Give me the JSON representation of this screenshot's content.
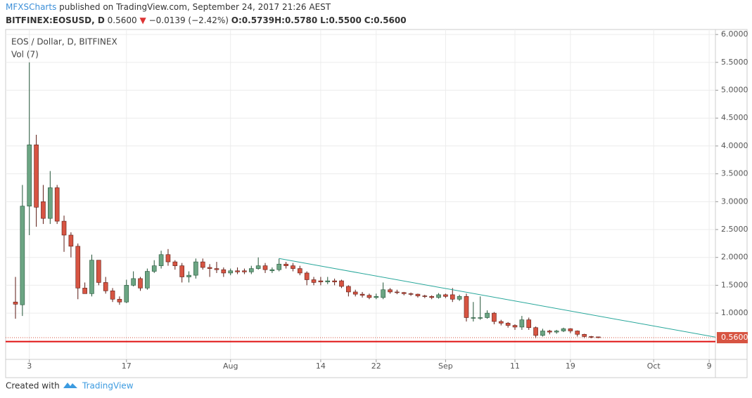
{
  "header": {
    "author": "MFXSCharts",
    "published": "published on TradingView.com, September 24, 2017 21:26 AEST",
    "symbol": "BITFINEX:EOSUSD, D",
    "last": "0.5600",
    "arrow": "▼",
    "change": "−0.0139 (−2.42%)",
    "ohlc": [
      "O:0.5739",
      "H:0.5780",
      "L:0.5500",
      "C:0.5600"
    ]
  },
  "footer": {
    "created": "Created with",
    "brand": "TradingView"
  },
  "chart_data": {
    "type": "candlestick",
    "title": "EOS / Dollar, D, BITFINEX",
    "subtitle": "Vol (7)",
    "up_color": "#6ba583",
    "down_color": "#d75442",
    "open": [
      1.2,
      1.15,
      2.92,
      4.02,
      3.0,
      2.7,
      3.25,
      2.65,
      2.4,
      2.2,
      1.45,
      1.35,
      1.95,
      1.55,
      1.4,
      1.25,
      1.2,
      1.5,
      1.62,
      1.45,
      1.75,
      1.85,
      2.05,
      1.92,
      1.85,
      1.65,
      1.68,
      1.92,
      1.82,
      1.8,
      1.78,
      1.72,
      1.76,
      1.76,
      1.74,
      1.8,
      1.85,
      1.76,
      1.78,
      1.88,
      1.85,
      1.8,
      1.72,
      1.6,
      1.58,
      1.56,
      1.58,
      1.58,
      1.48,
      1.38,
      1.34,
      1.32,
      1.28,
      1.28,
      1.42,
      1.38,
      1.37,
      1.35,
      1.34,
      1.31,
      1.3,
      1.28,
      1.33,
      1.33,
      1.25,
      1.3,
      0.92,
      0.92,
      0.92,
      1.0,
      0.85,
      0.82,
      0.78,
      0.75,
      0.88,
      0.74,
      0.6,
      0.68,
      0.66,
      0.68,
      0.72,
      0.68,
      0.62,
      0.58,
      0.5739
    ],
    "high": [
      1.65,
      3.3,
      5.5,
      4.2,
      3.3,
      3.55,
      3.3,
      2.75,
      2.45,
      2.25,
      1.55,
      2.05,
      1.95,
      1.65,
      1.45,
      1.3,
      1.6,
      1.75,
      1.65,
      1.8,
      1.95,
      2.12,
      2.15,
      1.95,
      1.9,
      1.75,
      1.98,
      1.98,
      1.88,
      1.92,
      1.82,
      1.8,
      1.82,
      1.8,
      1.85,
      2.0,
      1.9,
      1.82,
      1.98,
      1.92,
      1.9,
      1.85,
      1.75,
      1.65,
      1.65,
      1.65,
      1.62,
      1.6,
      1.5,
      1.42,
      1.38,
      1.35,
      1.35,
      1.55,
      1.45,
      1.42,
      1.38,
      1.37,
      1.35,
      1.33,
      1.32,
      1.36,
      1.35,
      1.45,
      1.33,
      1.35,
      1.2,
      1.3,
      1.05,
      1.02,
      0.88,
      0.84,
      0.8,
      0.95,
      0.92,
      0.76,
      0.72,
      0.7,
      0.7,
      0.74,
      0.73,
      0.69,
      0.63,
      0.59,
      0.578
    ],
    "low": [
      0.9,
      0.95,
      2.4,
      2.55,
      2.6,
      2.6,
      2.6,
      2.1,
      2.0,
      1.25,
      1.35,
      1.3,
      1.5,
      1.35,
      1.2,
      1.15,
      1.18,
      1.48,
      1.4,
      1.42,
      1.72,
      1.8,
      1.85,
      1.78,
      1.55,
      1.55,
      1.62,
      1.78,
      1.65,
      1.72,
      1.65,
      1.68,
      1.7,
      1.7,
      1.7,
      1.78,
      1.72,
      1.72,
      1.75,
      1.8,
      1.75,
      1.68,
      1.5,
      1.5,
      1.5,
      1.52,
      1.5,
      1.45,
      1.3,
      1.3,
      1.28,
      1.25,
      1.25,
      1.25,
      1.35,
      1.34,
      1.32,
      1.31,
      1.28,
      1.27,
      1.25,
      1.26,
      1.27,
      1.2,
      1.22,
      0.85,
      0.85,
      0.88,
      0.9,
      0.8,
      0.78,
      0.74,
      0.7,
      0.7,
      0.7,
      0.55,
      0.58,
      0.62,
      0.63,
      0.66,
      0.64,
      0.58,
      0.55,
      0.55,
      0.55
    ],
    "close": [
      1.16,
      2.92,
      4.02,
      2.9,
      2.7,
      3.25,
      2.65,
      2.4,
      2.2,
      1.45,
      1.35,
      1.95,
      1.55,
      1.4,
      1.25,
      1.2,
      1.5,
      1.62,
      1.45,
      1.75,
      1.85,
      2.05,
      1.92,
      1.85,
      1.65,
      1.68,
      1.92,
      1.82,
      1.8,
      1.78,
      1.72,
      1.76,
      1.74,
      1.74,
      1.8,
      1.85,
      1.78,
      1.78,
      1.88,
      1.85,
      1.8,
      1.72,
      1.6,
      1.55,
      1.56,
      1.58,
      1.56,
      1.48,
      1.38,
      1.34,
      1.32,
      1.28,
      1.3,
      1.42,
      1.38,
      1.37,
      1.35,
      1.34,
      1.31,
      1.3,
      1.28,
      1.33,
      1.3,
      1.25,
      1.3,
      0.92,
      0.92,
      0.92,
      1.0,
      0.85,
      0.82,
      0.78,
      0.75,
      0.88,
      0.74,
      0.6,
      0.68,
      0.66,
      0.68,
      0.72,
      0.68,
      0.62,
      0.58,
      0.5739,
      0.56
    ],
    "last_label": "0.5600",
    "trendline": {
      "x": [
        38,
        100.9
      ],
      "y": [
        1.98,
        0.57
      ],
      "color": "#26a69a"
    },
    "hline": {
      "value": 0.49,
      "color": "#e01010"
    },
    "xlim": [
      -1.42,
      100.9
    ],
    "ylim": [
      0.17,
      6.09
    ],
    "grid": true,
    "xticks": [
      {
        "value": 2,
        "label": "3"
      },
      {
        "value": 16,
        "label": "17"
      },
      {
        "value": 31,
        "label": "Aug"
      },
      {
        "value": 44,
        "label": "14"
      },
      {
        "value": 52,
        "label": "22"
      },
      {
        "value": 62,
        "label": "Sep"
      },
      {
        "value": 72,
        "label": "11"
      },
      {
        "value": 80,
        "label": "19"
      },
      {
        "value": 92,
        "label": "Oct"
      },
      {
        "value": 100,
        "label": "9"
      }
    ],
    "yticks": [
      {
        "value": 1,
        "label": "1.0000"
      },
      {
        "value": 1.5,
        "label": "1.5000"
      },
      {
        "value": 2,
        "label": "2.0000"
      },
      {
        "value": 2.5,
        "label": "2.5000"
      },
      {
        "value": 3,
        "label": "3.0000"
      },
      {
        "value": 3.5,
        "label": "3.5000"
      },
      {
        "value": 4,
        "label": "4.0000"
      },
      {
        "value": 4.5,
        "label": "4.5000"
      },
      {
        "value": 5,
        "label": "5.0000"
      },
      {
        "value": 5.5,
        "label": "5.5000"
      },
      {
        "value": 6,
        "label": "6.0000"
      }
    ]
  }
}
